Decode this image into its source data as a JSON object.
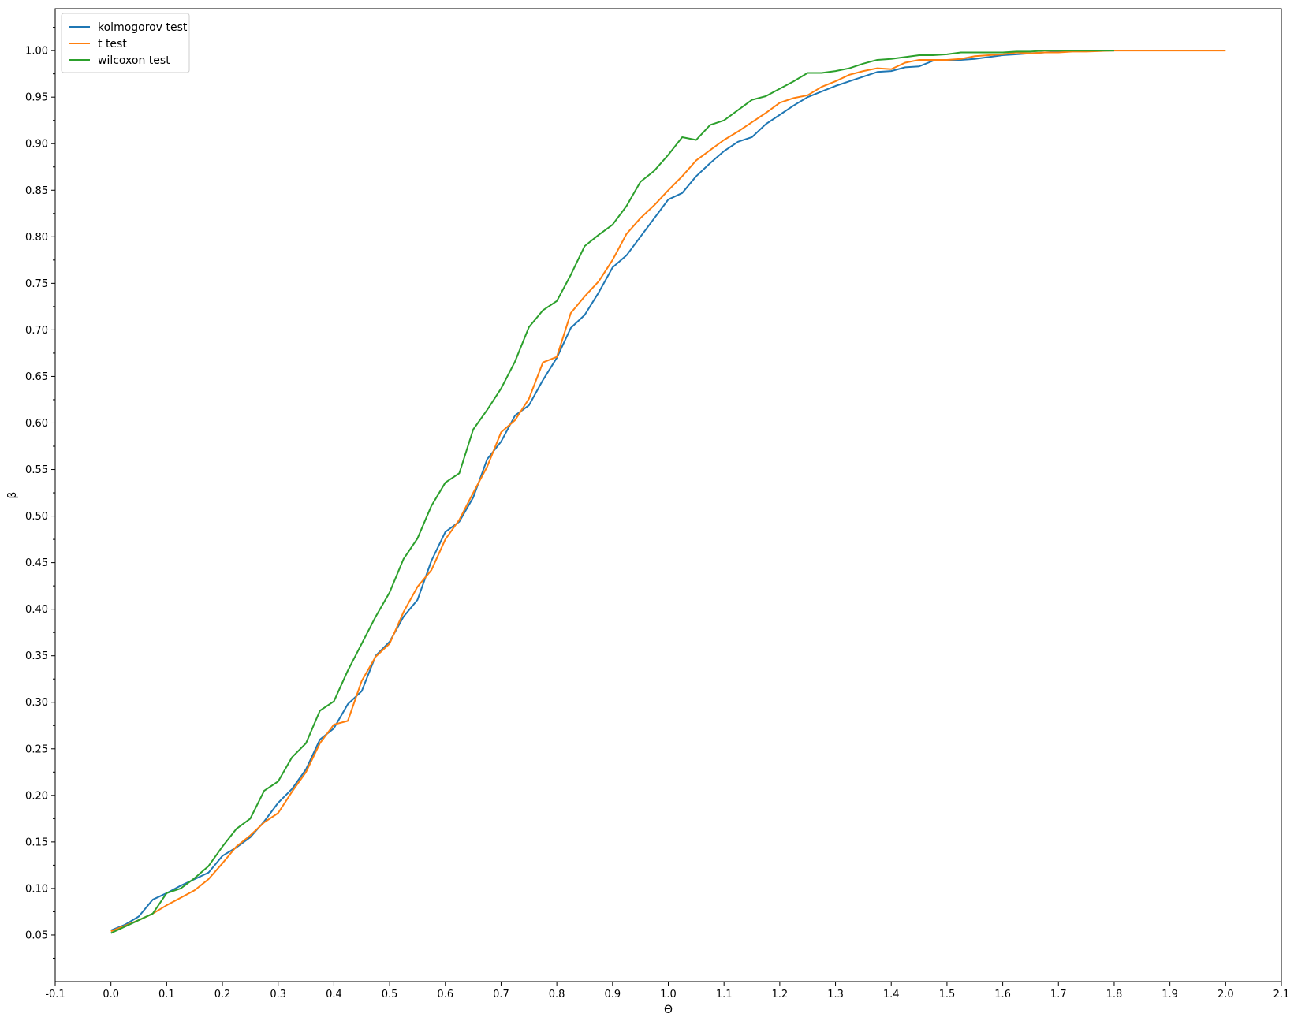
{
  "chart_data": {
    "type": "line",
    "title": "",
    "xlabel": "Θ",
    "ylabel": "β",
    "xlim": [
      -0.1,
      2.1
    ],
    "ylim": [
      0.0,
      1.045
    ],
    "x_ticks": [
      "-0.1",
      "0.0",
      "0.1",
      "0.2",
      "0.3",
      "0.4",
      "0.5",
      "0.6",
      "0.7",
      "0.8",
      "0.9",
      "1.0",
      "1.1",
      "1.2",
      "1.3",
      "1.4",
      "1.5",
      "1.6",
      "1.7",
      "1.8",
      "1.9",
      "2.0",
      "2.1"
    ],
    "x_tick_values": [
      -0.1,
      0.0,
      0.1,
      0.2,
      0.3,
      0.4,
      0.5,
      0.6,
      0.7,
      0.8,
      0.9,
      1.0,
      1.1,
      1.2,
      1.3,
      1.4,
      1.5,
      1.6,
      1.7,
      1.8,
      1.9,
      2.0,
      2.1
    ],
    "y_ticks": [
      "0.05",
      "0.10",
      "0.15",
      "0.20",
      "0.25",
      "0.30",
      "0.35",
      "0.40",
      "0.45",
      "0.50",
      "0.55",
      "0.60",
      "0.65",
      "0.70",
      "0.75",
      "0.80",
      "0.85",
      "0.90",
      "0.95",
      "1.00"
    ],
    "y_tick_values": [
      0.05,
      0.1,
      0.15,
      0.2,
      0.25,
      0.3,
      0.35,
      0.4,
      0.45,
      0.5,
      0.55,
      0.6,
      0.65,
      0.7,
      0.75,
      0.8,
      0.85,
      0.9,
      0.95,
      1.0
    ],
    "grid": false,
    "legend_position": "top-left",
    "series": [
      {
        "name": "kolmogorov test",
        "color": "#1f77b4",
        "x_start": 0.0,
        "x_step": 0.025,
        "values": [
          0.055,
          0.061,
          0.07,
          0.088,
          0.095,
          0.103,
          0.11,
          0.117,
          0.135,
          0.144,
          0.155,
          0.172,
          0.192,
          0.207,
          0.228,
          0.26,
          0.272,
          0.298,
          0.312,
          0.35,
          0.365,
          0.392,
          0.41,
          0.452,
          0.483,
          0.494,
          0.52,
          0.561,
          0.58,
          0.608,
          0.619,
          0.646,
          0.67,
          0.702,
          0.716,
          0.74,
          0.767,
          0.78,
          0.8,
          0.82,
          0.84,
          0.847,
          0.865,
          0.879,
          0.892,
          0.902,
          0.907,
          0.921,
          0.931,
          0.941,
          0.95,
          0.956,
          0.962,
          0.967,
          0.972,
          0.977,
          0.978,
          0.982,
          0.983,
          0.989,
          0.99,
          0.99,
          0.991,
          0.993,
          0.995,
          0.996,
          0.997,
          0.998,
          0.999,
          0.9995,
          1.0,
          1.0,
          1.0
        ]
      },
      {
        "name": "t test",
        "color": "#ff7f0e",
        "x_start": 0.0,
        "x_step": 0.025,
        "values": [
          0.054,
          0.06,
          0.066,
          0.073,
          0.082,
          0.09,
          0.098,
          0.11,
          0.127,
          0.145,
          0.157,
          0.171,
          0.181,
          0.204,
          0.225,
          0.256,
          0.276,
          0.28,
          0.323,
          0.349,
          0.363,
          0.397,
          0.424,
          0.442,
          0.475,
          0.496,
          0.525,
          0.553,
          0.59,
          0.603,
          0.626,
          0.665,
          0.671,
          0.718,
          0.736,
          0.752,
          0.775,
          0.803,
          0.82,
          0.834,
          0.85,
          0.865,
          0.882,
          0.893,
          0.904,
          0.913,
          0.923,
          0.933,
          0.944,
          0.949,
          0.952,
          0.961,
          0.967,
          0.974,
          0.978,
          0.981,
          0.98,
          0.987,
          0.99,
          0.99,
          0.99,
          0.991,
          0.994,
          0.995,
          0.996,
          0.998,
          0.997,
          0.998,
          0.998,
          0.999,
          0.999,
          0.9995,
          1.0,
          1.0,
          1.0,
          1.0,
          1.0,
          1.0,
          1.0,
          1.0,
          1.0
        ]
      },
      {
        "name": "wilcoxon test",
        "color": "#2ca02c",
        "x_start": 0.0,
        "x_step": 0.025,
        "values": [
          0.052,
          0.059,
          0.066,
          0.073,
          0.095,
          0.1,
          0.111,
          0.124,
          0.145,
          0.164,
          0.175,
          0.205,
          0.215,
          0.241,
          0.256,
          0.291,
          0.301,
          0.334,
          0.363,
          0.392,
          0.418,
          0.454,
          0.476,
          0.511,
          0.536,
          0.546,
          0.593,
          0.614,
          0.637,
          0.666,
          0.703,
          0.721,
          0.731,
          0.759,
          0.79,
          0.802,
          0.813,
          0.833,
          0.859,
          0.871,
          0.888,
          0.907,
          0.904,
          0.92,
          0.925,
          0.936,
          0.947,
          0.951,
          0.959,
          0.967,
          0.976,
          0.976,
          0.978,
          0.981,
          0.986,
          0.99,
          0.991,
          0.993,
          0.995,
          0.995,
          0.996,
          0.998,
          0.998,
          0.998,
          0.998,
          0.999,
          0.999,
          1.0,
          1.0,
          1.0,
          1.0,
          1.0,
          1.0
        ]
      }
    ]
  }
}
